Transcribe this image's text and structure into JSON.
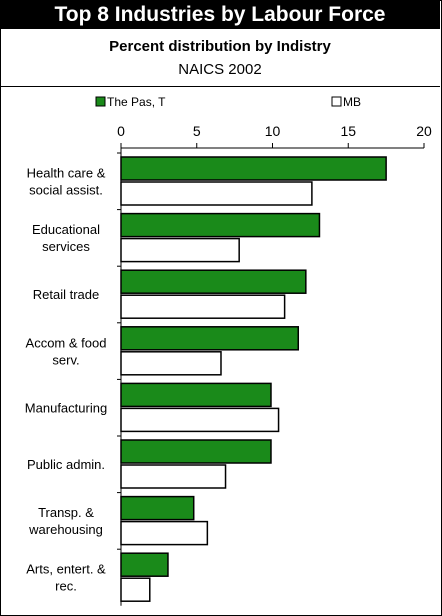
{
  "header": {
    "title": "Top 8 Industries by Labour Force",
    "subtitle": "Percent distribution by Indistry",
    "subtitle2": "NAICS 2002"
  },
  "colors": {
    "series_a": "#1a8a1a",
    "series_b": "#ffffff",
    "title_bg": "#000000"
  },
  "chart_data": {
    "type": "bar",
    "orientation": "horizontal",
    "categories": [
      [
        "Health care &",
        "social assist."
      ],
      [
        "Educational",
        "services"
      ],
      [
        "Retail trade"
      ],
      [
        "Accom & food",
        "serv."
      ],
      [
        "Manufacturing"
      ],
      [
        "Public admin."
      ],
      [
        "Transp. &",
        "warehousing"
      ],
      [
        "Arts, entert. &",
        "rec."
      ]
    ],
    "series": [
      {
        "name": "The Pas, T",
        "values": [
          17.5,
          13.1,
          12.2,
          11.7,
          9.9,
          9.9,
          4.8,
          3.1
        ]
      },
      {
        "name": "MB",
        "values": [
          12.6,
          7.8,
          10.8,
          6.6,
          10.4,
          6.9,
          5.7,
          1.9
        ]
      }
    ],
    "xlim": [
      0,
      20
    ],
    "xticks": [
      "0",
      "5",
      "10",
      "15",
      "20"
    ],
    "legend_placement": "top",
    "grid": false
  }
}
